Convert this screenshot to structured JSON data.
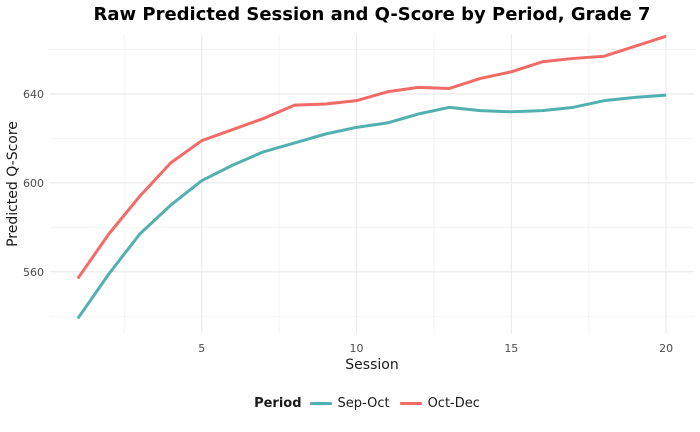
{
  "chart_data": {
    "type": "line",
    "title": "Raw Predicted Session and Q-Score by Period, Grade 7",
    "xlabel": "Session",
    "ylabel": "Predicted Q-Score",
    "x": [
      1,
      2,
      3,
      4,
      5,
      6,
      7,
      8,
      9,
      10,
      11,
      12,
      13,
      14,
      15,
      16,
      17,
      18,
      19,
      20
    ],
    "xlim": [
      0.1,
      20.9
    ],
    "ylim": [
      532,
      667
    ],
    "x_ticks": [
      5,
      10,
      15,
      20
    ],
    "y_ticks": [
      560,
      600,
      640
    ],
    "grid": true,
    "legend": {
      "title": "Period",
      "position": "bottom"
    },
    "series": [
      {
        "name": "Sep-Oct",
        "color": "#52b0b0",
        "values": [
          539,
          559,
          577,
          590,
          601,
          608,
          614,
          618,
          622,
          625,
          627,
          631,
          634,
          632.5,
          632,
          632.5,
          634,
          637,
          638.5,
          639.5
        ]
      },
      {
        "name": "Oct-Dec",
        "color": "#f26b66",
        "values": [
          557,
          577,
          594,
          609,
          619,
          624,
          629,
          635,
          635.5,
          637,
          641,
          643,
          642.5,
          647,
          650,
          654.5,
          656,
          657,
          661.5,
          666
        ]
      }
    ]
  }
}
